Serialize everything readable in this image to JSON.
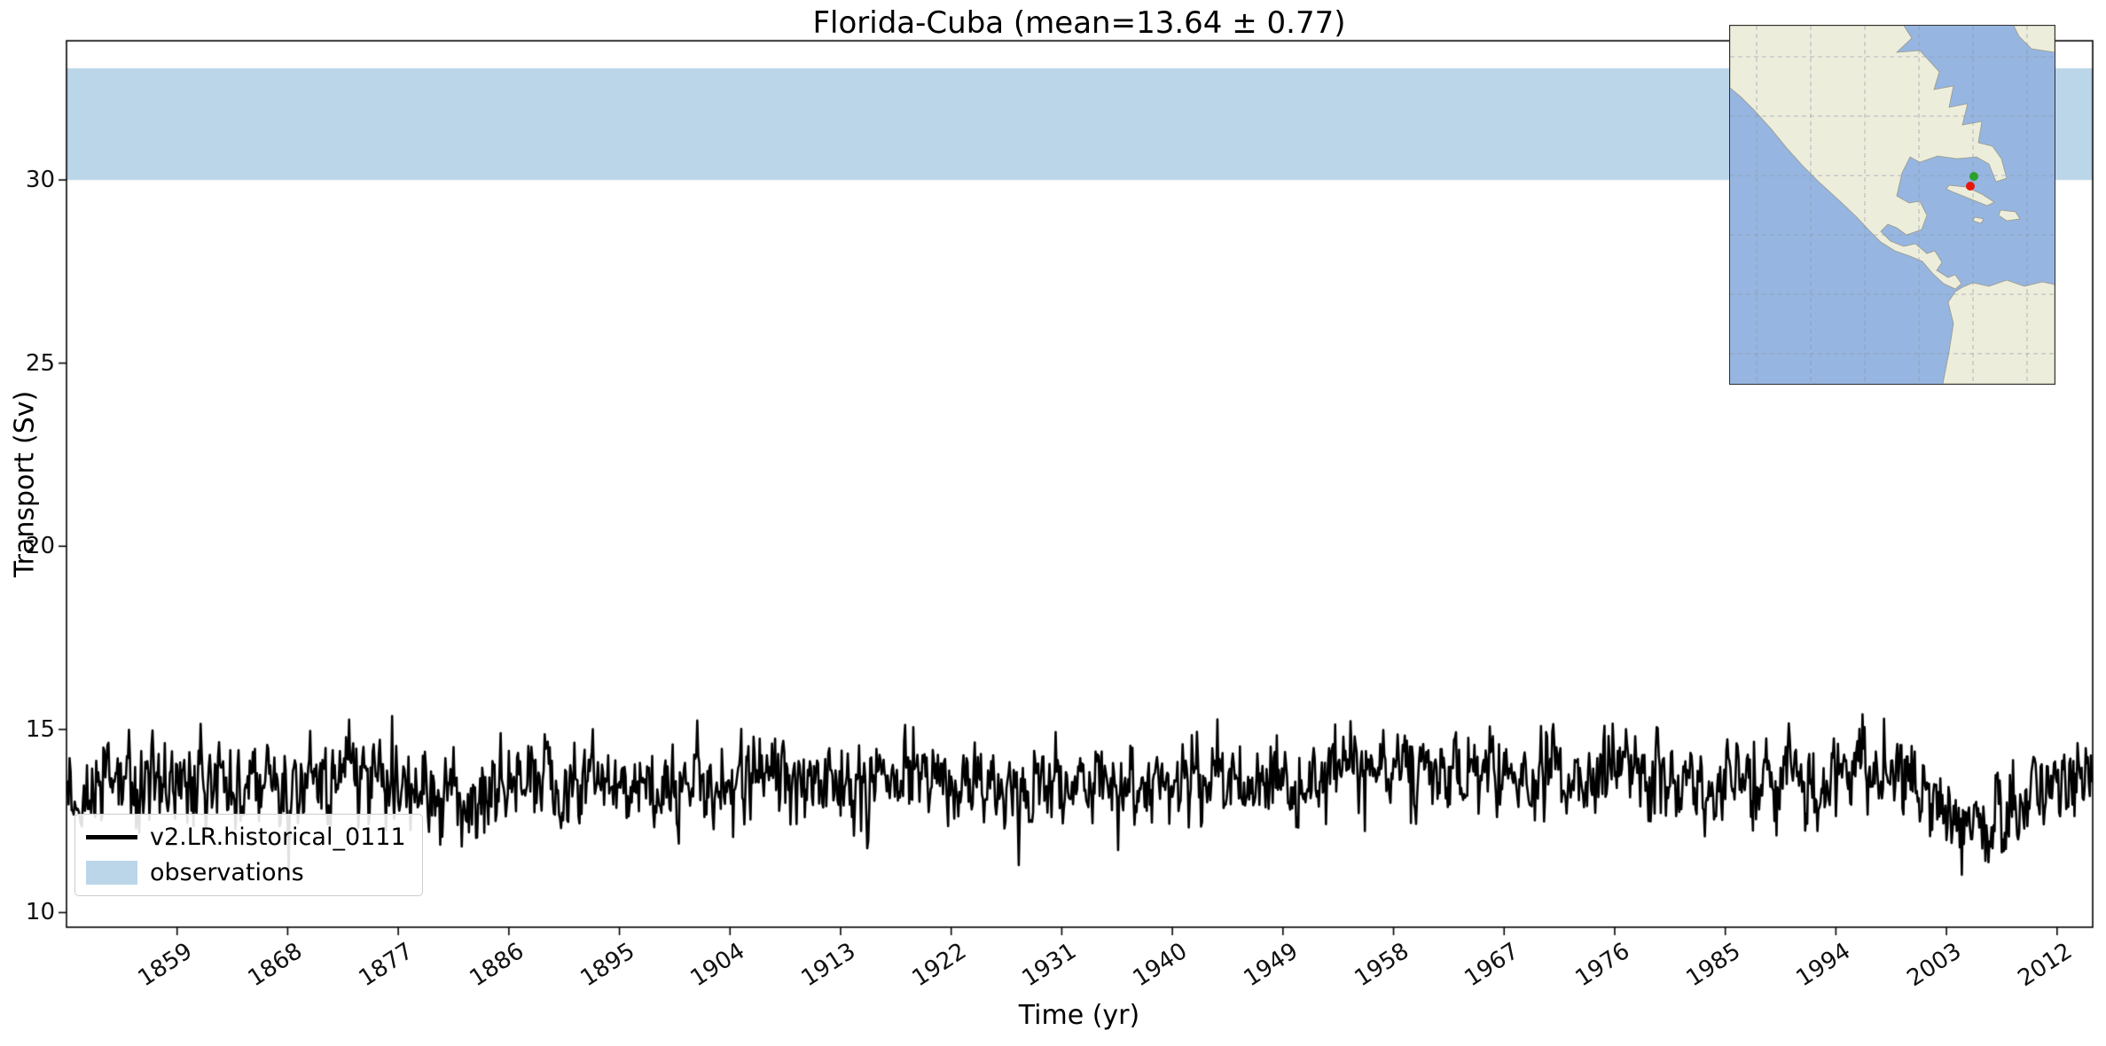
{
  "chart_data": {
    "type": "line",
    "title": "Florida-Cuba (mean=13.64 ± 0.77)",
    "xlabel": "Time (yr)",
    "ylabel": "Transport (Sv)",
    "xlim": [
      1850,
      2014.9
    ],
    "ylim": [
      9.6,
      33.8
    ],
    "xticks": [
      1859,
      1868,
      1877,
      1886,
      1895,
      1904,
      1913,
      1922,
      1931,
      1940,
      1949,
      1958,
      1967,
      1976,
      1985,
      1994,
      2003,
      2012
    ],
    "yticks": [
      10,
      15,
      20,
      25,
      30
    ],
    "grid": false,
    "legend_position": "lower left",
    "series": [
      {
        "name": "v2.LR.historical_0111",
        "type": "line",
        "color": "#000000",
        "mean": 13.64,
        "std": 0.77,
        "min": 10.5,
        "max": 16.1,
        "samples_per_year": 12,
        "seed": 20111,
        "ar1": 0.35,
        "noise_std": 0.62,
        "trend": [
          [
            1850,
            13.6
          ],
          [
            1856,
            13.4
          ],
          [
            1862,
            13.6
          ],
          [
            1868,
            13.5
          ],
          [
            1874,
            13.6
          ],
          [
            1878,
            13.4
          ],
          [
            1882,
            13.1
          ],
          [
            1884,
            12.9
          ],
          [
            1886,
            13.3
          ],
          [
            1888,
            13.6
          ],
          [
            1893,
            13.5
          ],
          [
            1898,
            13.6
          ],
          [
            1904,
            13.6
          ],
          [
            1908,
            13.7
          ],
          [
            1913,
            13.6
          ],
          [
            1918,
            13.7
          ],
          [
            1923,
            13.5
          ],
          [
            1928,
            13.3
          ],
          [
            1933,
            13.5
          ],
          [
            1938,
            13.6
          ],
          [
            1943,
            13.6
          ],
          [
            1948,
            13.5
          ],
          [
            1952,
            13.6
          ],
          [
            1956,
            14.0
          ],
          [
            1960,
            13.9
          ],
          [
            1964,
            13.7
          ],
          [
            1968,
            13.7
          ],
          [
            1972,
            13.8
          ],
          [
            1976,
            13.9
          ],
          [
            1980,
            13.8
          ],
          [
            1984,
            13.6
          ],
          [
            1988,
            13.5
          ],
          [
            1992,
            13.6
          ],
          [
            1996,
            13.8
          ],
          [
            2000,
            13.5
          ],
          [
            2003,
            12.6
          ],
          [
            2006,
            12.4
          ],
          [
            2009,
            12.9
          ],
          [
            2012,
            13.5
          ],
          [
            2014.9,
            13.8
          ]
        ]
      },
      {
        "name": "observations",
        "type": "band",
        "color": "#bcd6e9",
        "y_range": [
          30.0,
          33.05
        ]
      }
    ]
  },
  "inset": {
    "ocean_color": "#96b5e0",
    "land_color": "#ededdc",
    "coast_color": "#9a9a88",
    "grid_color": "#8a97a8",
    "marker_red": "#e8160c",
    "marker_green": "#2ca02c"
  }
}
